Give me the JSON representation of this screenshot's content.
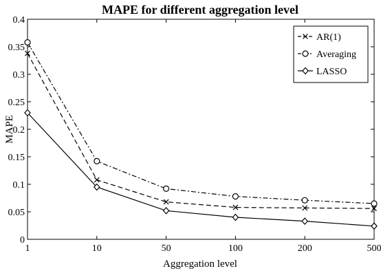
{
  "chart_data": {
    "type": "line",
    "title": "MAPE for different aggregation level",
    "xlabel": "Aggregation level",
    "ylabel": "MAPE",
    "categories": [
      "1",
      "10",
      "50",
      "100",
      "200",
      "500"
    ],
    "ylim": [
      0,
      0.4
    ],
    "yticks": [
      "0",
      "0.05",
      "0.1",
      "0.15",
      "0.2",
      "0.25",
      "0.3",
      "0.35",
      "0.4"
    ],
    "grid": false,
    "legend_position": "top-right",
    "series": [
      {
        "name": "AR(1)",
        "values": [
          0.338,
          0.108,
          0.068,
          0.058,
          0.057,
          0.056
        ],
        "line_style": "dashed",
        "marker": "x",
        "color": "#000000"
      },
      {
        "name": "Averaging",
        "values": [
          0.358,
          0.142,
          0.092,
          0.078,
          0.071,
          0.065
        ],
        "line_style": "dash-dot",
        "marker": "circle",
        "color": "#000000"
      },
      {
        "name": "LASSO",
        "values": [
          0.23,
          0.095,
          0.052,
          0.04,
          0.033,
          0.024
        ],
        "line_style": "solid",
        "marker": "diamond",
        "color": "#000000"
      }
    ]
  }
}
